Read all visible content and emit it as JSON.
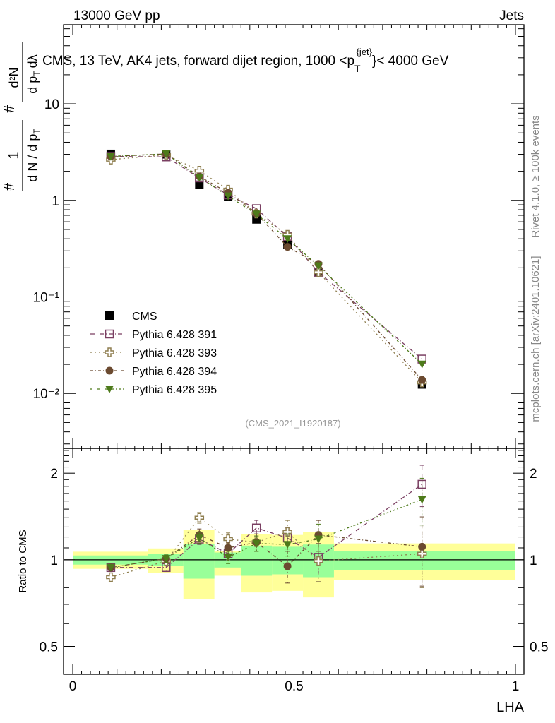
{
  "header": {
    "left": "13000 GeV pp",
    "right": "Jets"
  },
  "side_text": {
    "rivet": "Rivet 4.1.0, ≥ 100k events",
    "mcplots": "mcplots.cern.ch [arXiv:2401.10621]"
  },
  "analysis_id": "(CMS_2021_I1920187)",
  "chart_data": [
    {
      "type": "line",
      "panel": "main",
      "title": "CMS, 13 TeV, AK4 jets, forward dijet region, 1000 <",
      "title_p": "p",
      "title_sub": "T",
      "title_sup": "{jet}",
      "title_end": "}< 4000 GeV",
      "ylabel": {
        "num1": "1",
        "den1": "d N / d p",
        "den1_sub": "T",
        "num2": "d²N",
        "den2": "d p",
        "den2_sub": "T",
        "den2_end": "dλ",
        "hash": "#"
      },
      "yscale": "log",
      "ylim": [
        0.0027,
        66
      ],
      "xlim": [
        -0.02,
        1.0
      ],
      "yticks": [
        {
          "v": 0.01,
          "label": "10⁻²"
        },
        {
          "v": 0.1,
          "label": "10⁻¹"
        },
        {
          "v": 1,
          "label": "1"
        },
        {
          "v": 10,
          "label": "10"
        }
      ],
      "x": [
        0.086,
        0.211,
        0.286,
        0.351,
        0.415,
        0.485,
        0.555,
        0.789
      ],
      "series": [
        {
          "name": "CMS",
          "marker": "square-filled",
          "color": "#000000",
          "values": [
            3.03,
            3.0,
            1.45,
            1.09,
            0.635,
            0.35,
            0.18,
            0.0124
          ]
        },
        {
          "name": "Pythia 6.428 391",
          "marker": "square-open",
          "color": "#7a3f62",
          "dash": "6,3,1,3",
          "values": [
            2.85,
            2.82,
            1.71,
            1.14,
            0.82,
            0.42,
            0.18,
            0.0227
          ]
        },
        {
          "name": "Pythia 6.428 393",
          "marker": "cross-open",
          "color": "#8f7f50",
          "dash": "2,4",
          "values": [
            2.64,
            2.97,
            2.03,
            1.29,
            0.73,
            0.44,
            0.18,
            0.013
          ]
        },
        {
          "name": "Pythia 6.428 394",
          "marker": "circle-filled",
          "color": "#6b4a30",
          "dash": "4,3,1,3",
          "values": [
            2.85,
            3.03,
            1.77,
            1.2,
            0.73,
            0.33,
            0.22,
            0.0138
          ]
        },
        {
          "name": "Pythia 6.428 395",
          "marker": "triangle-down",
          "color": "#4d7a1a",
          "dash": "3,3,1,3",
          "values": [
            2.85,
            3.03,
            1.73,
            1.11,
            0.72,
            0.4,
            0.21,
            0.0201
          ]
        }
      ]
    },
    {
      "type": "line",
      "panel": "ratio",
      "ylabel": "Ratio to CMS",
      "xlabel": "LHA",
      "yscale": "log",
      "ylim": [
        0.4,
        2.44
      ],
      "yticks": [
        {
          "v": 0.5,
          "label": "0.5"
        },
        {
          "v": 1,
          "label": "1"
        },
        {
          "v": 2,
          "label": "2"
        }
      ],
      "xticks": [
        {
          "v": 0,
          "label": "0"
        },
        {
          "v": 0.5,
          "label": "0.5"
        },
        {
          "v": 1,
          "label": "1"
        }
      ],
      "bin_edges": [
        0,
        0.17,
        0.25,
        0.32,
        0.38,
        0.45,
        0.52,
        0.59,
        1.0
      ],
      "band_yellow": [
        [
          0.93,
          1.067
        ],
        [
          0.9,
          1.095
        ],
        [
          0.73,
          1.27
        ],
        [
          0.88,
          1.07
        ],
        [
          0.77,
          1.23
        ],
        [
          0.78,
          1.22
        ],
        [
          0.74,
          1.25
        ],
        [
          0.85,
          1.14
        ]
      ],
      "band_green": [
        [
          0.962,
          1.035
        ],
        [
          0.95,
          1.05
        ],
        [
          0.86,
          1.135
        ],
        [
          0.94,
          1.06
        ],
        [
          0.88,
          1.12
        ],
        [
          0.89,
          1.11
        ],
        [
          0.87,
          1.13
        ],
        [
          0.92,
          1.07
        ]
      ],
      "x": [
        0.086,
        0.211,
        0.286,
        0.351,
        0.415,
        0.485,
        0.555,
        0.789
      ],
      "series": [
        {
          "name": "Pythia 6.428 391",
          "values": [
            0.94,
            0.94,
            1.18,
            1.05,
            1.29,
            1.19,
            1.02,
            1.83
          ],
          "err": [
            0.02,
            0.03,
            0.05,
            0.05,
            0.08,
            0.1,
            0.12,
            0.3
          ]
        },
        {
          "name": "Pythia 6.428 393",
          "values": [
            0.87,
            0.99,
            1.4,
            1.18,
            1.15,
            1.25,
            0.99,
            1.05
          ],
          "err": [
            0.03,
            0.03,
            0.06,
            0.06,
            0.08,
            0.12,
            0.15,
            0.25
          ]
        },
        {
          "name": "Pythia 6.428 394",
          "values": [
            0.94,
            1.01,
            1.22,
            1.1,
            1.15,
            0.95,
            1.22,
            1.11
          ],
          "err": [
            0.02,
            0.03,
            0.06,
            0.05,
            0.08,
            0.12,
            0.15,
            0.3
          ]
        },
        {
          "name": "Pythia 6.428 395",
          "values": [
            0.94,
            1.01,
            1.19,
            1.02,
            1.14,
            1.13,
            1.18,
            1.62
          ],
          "err": [
            0.02,
            0.03,
            0.05,
            0.05,
            0.07,
            0.1,
            0.15,
            0.3
          ]
        }
      ]
    }
  ]
}
